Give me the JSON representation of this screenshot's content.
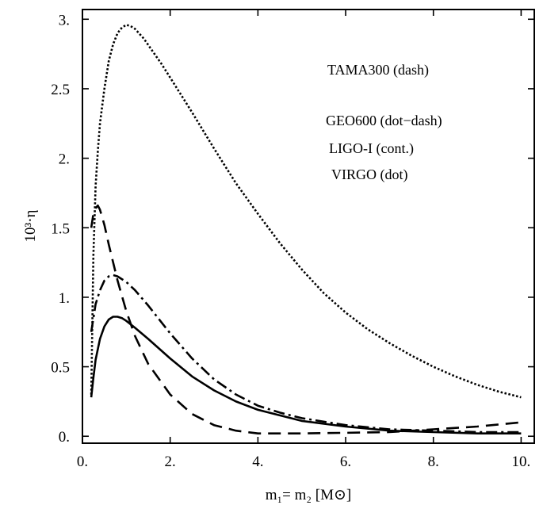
{
  "chart_data": {
    "type": "line",
    "xlabel": "m₁= m₂ [M⊙]",
    "ylabel": "10³·η",
    "xlim": [
      0,
      10.3
    ],
    "ylim": [
      -0.05,
      3.07
    ],
    "x_ticks": [
      {
        "value": 0,
        "label": "0."
      },
      {
        "value": 2,
        "label": "2."
      },
      {
        "value": 4,
        "label": "4."
      },
      {
        "value": 6,
        "label": "6."
      },
      {
        "value": 8,
        "label": "8."
      },
      {
        "value": 10,
        "label": "10."
      }
    ],
    "y_ticks": [
      {
        "value": 0,
        "label": "0."
      },
      {
        "value": 0.5,
        "label": "0.5"
      },
      {
        "value": 1,
        "label": "1."
      },
      {
        "value": 1.5,
        "label": "1.5"
      },
      {
        "value": 2,
        "label": "2."
      },
      {
        "value": 2.5,
        "label": "2.5"
      },
      {
        "value": 3,
        "label": "3."
      }
    ],
    "legend_position": "top-right",
    "legend": [
      {
        "label": "TAMA300 (dash)"
      },
      {
        "label": "GEO600 (dot−dash)"
      },
      {
        "label": "LIGO-I (cont.)"
      },
      {
        "label": "VIRGO (dot)"
      }
    ],
    "series": [
      {
        "style": "dash",
        "x": [
          0.2,
          0.25,
          0.3,
          0.35,
          0.4,
          0.5,
          0.6,
          0.8,
          1.0,
          1.2,
          1.5,
          2.0,
          2.5,
          3.0,
          3.5,
          4.0,
          4.5,
          5.0,
          6.0,
          7.0,
          8.0,
          9.0,
          10.0
        ],
        "y": [
          1.5,
          1.6,
          1.64,
          1.66,
          1.63,
          1.52,
          1.38,
          1.12,
          0.9,
          0.72,
          0.52,
          0.3,
          0.16,
          0.08,
          0.04,
          0.02,
          0.02,
          0.02,
          0.025,
          0.03,
          0.05,
          0.07,
          0.1
        ]
      },
      {
        "style": "dot-dash",
        "x": [
          0.2,
          0.3,
          0.4,
          0.5,
          0.6,
          0.7,
          0.8,
          0.9,
          1.0,
          1.2,
          1.5,
          2.0,
          2.5,
          3.0,
          3.5,
          4.0,
          4.5,
          5.0,
          6.0,
          7.0,
          8.0,
          9.0,
          10.0
        ],
        "y": [
          0.75,
          0.95,
          1.05,
          1.12,
          1.15,
          1.16,
          1.15,
          1.13,
          1.11,
          1.05,
          0.94,
          0.74,
          0.56,
          0.41,
          0.3,
          0.22,
          0.17,
          0.13,
          0.08,
          0.05,
          0.04,
          0.03,
          0.03
        ]
      },
      {
        "style": "solid",
        "x": [
          0.2,
          0.25,
          0.3,
          0.4,
          0.5,
          0.6,
          0.7,
          0.8,
          0.9,
          1.0,
          1.2,
          1.5,
          2.0,
          2.5,
          3.0,
          3.5,
          4.0,
          5.0,
          6.0,
          7.0,
          8.0,
          9.0,
          10.0
        ],
        "y": [
          0.28,
          0.42,
          0.55,
          0.7,
          0.79,
          0.84,
          0.86,
          0.86,
          0.85,
          0.83,
          0.78,
          0.7,
          0.56,
          0.43,
          0.33,
          0.25,
          0.19,
          0.11,
          0.07,
          0.04,
          0.03,
          0.02,
          0.02
        ]
      },
      {
        "style": "dot",
        "x": [
          0.2,
          0.25,
          0.3,
          0.35,
          0.4,
          0.5,
          0.6,
          0.7,
          0.8,
          0.9,
          1.0,
          1.1,
          1.2,
          1.4,
          1.6,
          1.8,
          2.0,
          2.5,
          3.0,
          3.5,
          4.0,
          4.5,
          5.0,
          5.5,
          6.0,
          6.5,
          7.0,
          7.5,
          8.0,
          8.5,
          9.0,
          9.5,
          10.0
        ],
        "y": [
          0.3,
          1.3,
          1.8,
          2.05,
          2.25,
          2.5,
          2.7,
          2.82,
          2.9,
          2.94,
          2.96,
          2.95,
          2.93,
          2.86,
          2.77,
          2.68,
          2.58,
          2.33,
          2.07,
          1.82,
          1.6,
          1.39,
          1.2,
          1.03,
          0.89,
          0.77,
          0.67,
          0.58,
          0.5,
          0.43,
          0.37,
          0.32,
          0.28
        ]
      }
    ]
  }
}
